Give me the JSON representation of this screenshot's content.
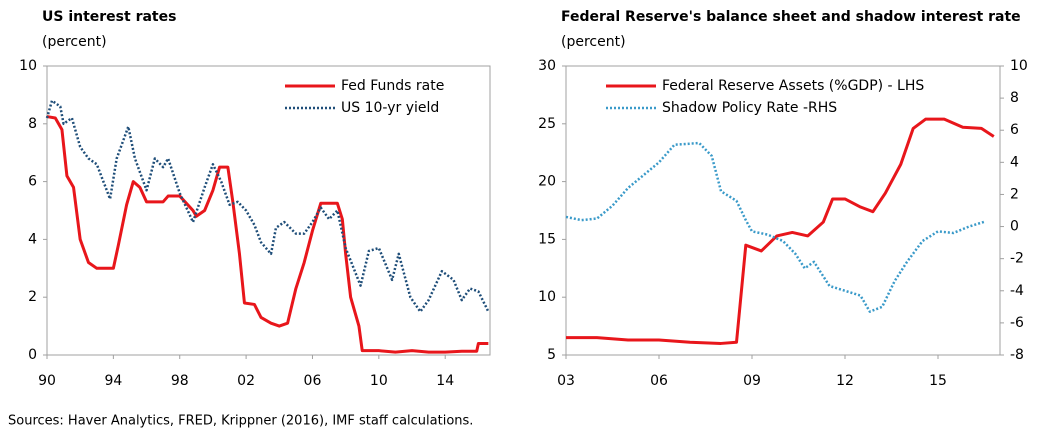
{
  "chart_data": [
    {
      "type": "line",
      "title": "US interest rates",
      "subtitle": "(percent)",
      "xlim": [
        1990,
        2016.7
      ],
      "xticks": [
        {
          "value": 1990,
          "label": "90"
        },
        {
          "value": 1994,
          "label": "94"
        },
        {
          "value": 1998,
          "label": "98"
        },
        {
          "value": 2002,
          "label": "02"
        },
        {
          "value": 2006,
          "label": "06"
        },
        {
          "value": 2010,
          "label": "10"
        },
        {
          "value": 2014,
          "label": "14"
        }
      ],
      "ylim": [
        0,
        10
      ],
      "yticks": [
        0,
        2,
        4,
        6,
        8,
        10
      ],
      "legend": "upper right",
      "series": [
        {
          "name": "Fed Funds rate",
          "color": "#e8161b",
          "style": "solid",
          "x": [
            1990,
            1990.5,
            1990.9,
            1991.2,
            1991.6,
            1992,
            1992.5,
            1993,
            1994,
            1994.3,
            1994.8,
            1995.2,
            1995.6,
            1996,
            1996.5,
            1997,
            1997.3,
            1998,
            1998.8,
            1999,
            1999.5,
            2000,
            2000.4,
            2000.9,
            2001.2,
            2001.6,
            2001.9,
            2002.5,
            2002.9,
            2003.5,
            2004,
            2004.5,
            2005,
            2005.5,
            2006,
            2006.5,
            2007.5,
            2007.8,
            2008,
            2008.3,
            2008.8,
            2009,
            2010,
            2011,
            2012,
            2013,
            2014,
            2015,
            2015.9,
            2016,
            2016.6
          ],
          "values": [
            8.25,
            8.2,
            7.8,
            6.2,
            5.8,
            4.0,
            3.2,
            3.0,
            3.0,
            3.8,
            5.2,
            6.0,
            5.8,
            5.3,
            5.3,
            5.3,
            5.5,
            5.5,
            5.0,
            4.8,
            5.0,
            5.7,
            6.5,
            6.5,
            5.3,
            3.5,
            1.8,
            1.75,
            1.3,
            1.1,
            1.0,
            1.1,
            2.3,
            3.2,
            4.3,
            5.25,
            5.25,
            4.7,
            3.5,
            2.0,
            1.0,
            0.15,
            0.15,
            0.1,
            0.15,
            0.1,
            0.1,
            0.13,
            0.13,
            0.4,
            0.4
          ]
        },
        {
          "name": "US 10-yr yield",
          "color": "#1f4e79",
          "style": "dotted",
          "x": [
            1990,
            1990.3,
            1990.8,
            1991,
            1991.5,
            1992,
            1992.5,
            1993,
            1993.8,
            1994.2,
            1994.9,
            1995.3,
            1996,
            1996.5,
            1997,
            1997.3,
            1998,
            1998.8,
            1999.5,
            2000,
            2000.5,
            2001,
            2001.5,
            2002,
            2002.5,
            2002.9,
            2003.5,
            2003.8,
            2004.3,
            2005,
            2005.5,
            2006,
            2006.5,
            2007,
            2007.5,
            2008,
            2008.9,
            2009.4,
            2010,
            2010.8,
            2011.2,
            2011.9,
            2012.5,
            2013,
            2013.8,
            2014.5,
            2015,
            2015.5,
            2016,
            2016.6
          ],
          "values": [
            8.2,
            8.8,
            8.6,
            8.0,
            8.2,
            7.2,
            6.8,
            6.6,
            5.4,
            6.8,
            7.9,
            6.8,
            5.7,
            6.8,
            6.5,
            6.8,
            5.6,
            4.6,
            5.8,
            6.6,
            6.0,
            5.2,
            5.3,
            5.0,
            4.5,
            3.9,
            3.5,
            4.4,
            4.6,
            4.2,
            4.2,
            4.6,
            5.1,
            4.7,
            5.0,
            3.7,
            2.4,
            3.6,
            3.7,
            2.6,
            3.5,
            2.0,
            1.5,
            1.9,
            2.9,
            2.6,
            1.9,
            2.3,
            2.2,
            1.5
          ]
        }
      ]
    },
    {
      "type": "line",
      "title": "Federal Reserve's balance sheet and shadow interest rate",
      "subtitle": "(percent)",
      "xlim": [
        2003,
        2017
      ],
      "xticks": [
        {
          "value": 2003,
          "label": "03"
        },
        {
          "value": 2006,
          "label": "06"
        },
        {
          "value": 2009,
          "label": "09"
        },
        {
          "value": 2012,
          "label": "12"
        },
        {
          "value": 2015,
          "label": "15"
        }
      ],
      "ylim": [
        5,
        30
      ],
      "yticks": [
        5,
        10,
        15,
        20,
        25,
        30
      ],
      "y2lim": [
        -8,
        10
      ],
      "y2ticks": [
        -8,
        -6,
        -4,
        -2,
        0,
        2,
        4,
        6,
        8,
        10
      ],
      "legend": "upper left",
      "series": [
        {
          "name": "Federal Reserve Assets (%GDP) - LHS",
          "color": "#e8161b",
          "style": "solid",
          "x": [
            2003,
            2004,
            2005,
            2006,
            2007,
            2008,
            2008.5,
            2008.8,
            2009.3,
            2009.8,
            2010.3,
            2010.8,
            2011.3,
            2011.6,
            2012,
            2012.5,
            2012.9,
            2013.3,
            2013.8,
            2014.2,
            2014.6,
            2015.2,
            2015.8,
            2016.4,
            2016.8
          ],
          "values": [
            6.5,
            6.5,
            6.3,
            6.3,
            6.1,
            6.0,
            6.1,
            14.5,
            14.0,
            15.3,
            15.6,
            15.3,
            16.5,
            18.5,
            18.5,
            17.8,
            17.4,
            19.0,
            21.5,
            24.6,
            25.4,
            25.4,
            24.7,
            24.6,
            23.9
          ]
        },
        {
          "name": "Shadow Policy Rate -RHS",
          "color": "#3a9ac9",
          "style": "dotted",
          "axis": "y2",
          "x": [
            2003,
            2003.5,
            2004,
            2004.5,
            2005,
            2005.5,
            2006,
            2006.5,
            2007.3,
            2007.7,
            2008,
            2008.5,
            2008.8,
            2009,
            2009.5,
            2010,
            2010.4,
            2010.7,
            2011,
            2011.5,
            2012,
            2012.5,
            2012.8,
            2013.2,
            2013.6,
            2014,
            2014.5,
            2015,
            2015.5,
            2016,
            2016.5
          ],
          "values": [
            0.6,
            0.4,
            0.5,
            1.3,
            2.4,
            3.2,
            4.0,
            5.1,
            5.2,
            4.4,
            2.2,
            1.6,
            0.4,
            -0.3,
            -0.5,
            -0.9,
            -1.7,
            -2.6,
            -2.2,
            -3.7,
            -4.0,
            -4.3,
            -5.3,
            -5.0,
            -3.4,
            -2.2,
            -0.9,
            -0.3,
            -0.4,
            0.0,
            0.3
          ]
        }
      ]
    }
  ],
  "source": "Sources: Haver Analytics, FRED, Krippner (2016), IMF staff calculations."
}
